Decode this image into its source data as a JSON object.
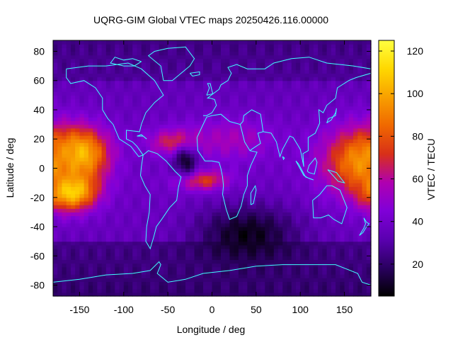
{
  "chart_data": {
    "type": "heatmap",
    "title": "UQRG-GIM Global VTEC maps 20250426.116.00000",
    "xlabel": "Longitude / deg",
    "ylabel": "Latitude / deg",
    "colorbar_label": "VTEC / TECU",
    "xlim": [
      -180,
      180
    ],
    "ylim": [
      -87.5,
      87.5
    ],
    "clim": [
      5,
      125
    ],
    "x_ticks": [
      -150,
      -100,
      -50,
      0,
      50,
      100,
      150
    ],
    "y_ticks": [
      -80,
      -60,
      -40,
      -20,
      0,
      20,
      40,
      60,
      80
    ],
    "colorbar_ticks": [
      20,
      40,
      60,
      80,
      100,
      120
    ],
    "colormap": [
      "#000000",
      "#2a0060",
      "#5a00b0",
      "#8000d8",
      "#b000b0",
      "#d83018",
      "#f06800",
      "#f8a000",
      "#ffd800",
      "#ffff40"
    ],
    "coastline_color": "#40ffff",
    "grid": false,
    "colorbar_position": "right",
    "features": [
      {
        "lon": -150,
        "lat": 10,
        "value": 110,
        "sigma_lon": 22,
        "sigma_lat": 12
      },
      {
        "lon": -160,
        "lat": -15,
        "value": 118,
        "sigma_lon": 20,
        "sigma_lat": 9
      },
      {
        "lon": 170,
        "lat": 5,
        "value": 95,
        "sigma_lon": 30,
        "sigma_lat": 16
      },
      {
        "lon": -40,
        "lat": 18,
        "value": 75,
        "sigma_lon": 20,
        "sigma_lat": 6
      },
      {
        "lon": -10,
        "lat": -8,
        "value": 75,
        "sigma_lon": 20,
        "sigma_lat": 5
      },
      {
        "lon": 20,
        "lat": 20,
        "value": 55,
        "sigma_lon": 35,
        "sigma_lat": 10
      },
      {
        "lon": 40,
        "lat": -45,
        "value": 8,
        "sigma_lon": 40,
        "sigma_lat": 14
      },
      {
        "lon": -30,
        "lat": 5,
        "value": 12,
        "sigma_lon": 10,
        "sigma_lat": 7
      }
    ]
  }
}
